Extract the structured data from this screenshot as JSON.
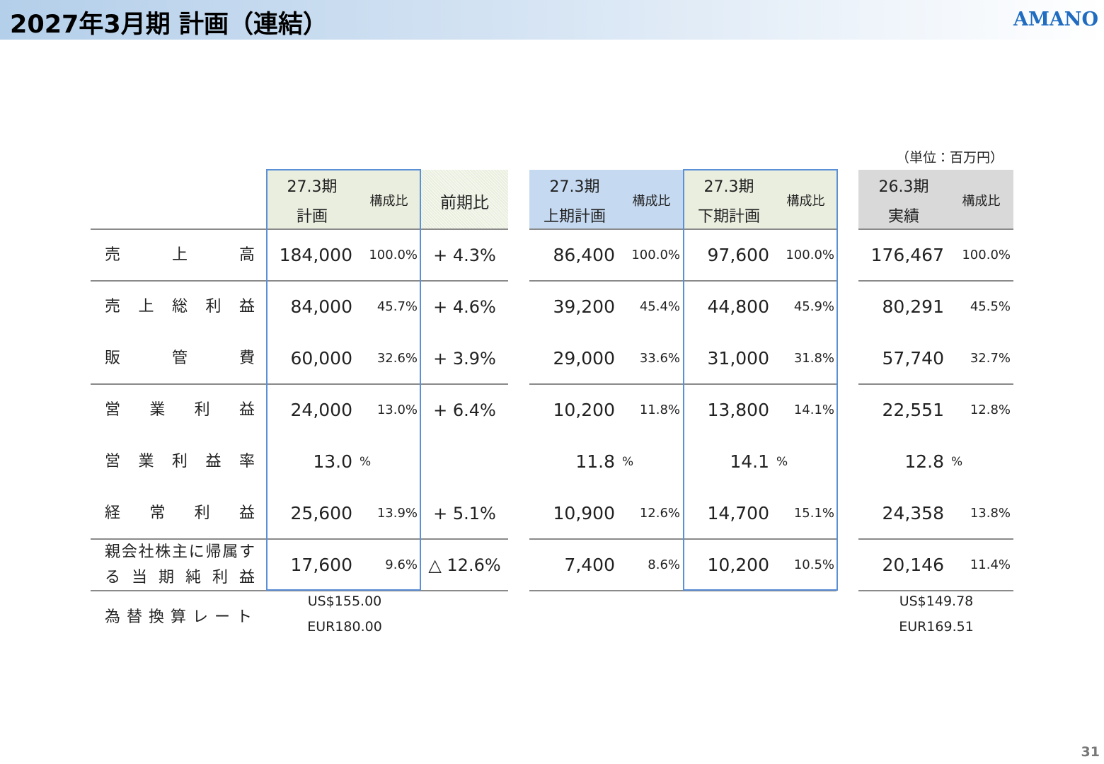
{
  "header": {
    "title": "2027年3月期 計画（連結）",
    "logo": "AMANO"
  },
  "unit_note": "（単位：百万円）",
  "table": {
    "headers": {
      "plan": {
        "period": "27.3期",
        "name": "計画",
        "ratio": "構成比"
      },
      "yoy": {
        "name": "前期比"
      },
      "h1": {
        "period": "27.3期",
        "name": "上期計画",
        "ratio": "構成比"
      },
      "h2": {
        "period": "27.3期",
        "name": "下期計画",
        "ratio": "構成比"
      },
      "prev": {
        "period": "26.3期",
        "name": "実績",
        "ratio": "構成比"
      }
    },
    "rows": [
      {
        "label": "売上高",
        "plan": {
          "value": "184,000",
          "ratio": "100.0%"
        },
        "yoy": "+ 4.3%",
        "h1": {
          "value": "86,400",
          "ratio": "100.0%"
        },
        "h2": {
          "value": "97,600",
          "ratio": "100.0%"
        },
        "prev": {
          "value": "176,467",
          "ratio": "100.0%"
        }
      },
      {
        "label": "売上総利益",
        "plan": {
          "value": "84,000",
          "ratio": "45.7%"
        },
        "yoy": "+ 4.6%",
        "h1": {
          "value": "39,200",
          "ratio": "45.4%"
        },
        "h2": {
          "value": "44,800",
          "ratio": "45.9%"
        },
        "prev": {
          "value": "80,291",
          "ratio": "45.5%"
        }
      },
      {
        "label": "販管費",
        "plan": {
          "value": "60,000",
          "ratio": "32.6%"
        },
        "yoy": "+ 3.9%",
        "h1": {
          "value": "29,000",
          "ratio": "33.6%"
        },
        "h2": {
          "value": "31,000",
          "ratio": "31.8%"
        },
        "prev": {
          "value": "57,740",
          "ratio": "32.7%"
        }
      },
      {
        "label": "営業利益",
        "plan": {
          "value": "24,000",
          "ratio": "13.0%"
        },
        "yoy": "+ 6.4%",
        "h1": {
          "value": "10,200",
          "ratio": "11.8%"
        },
        "h2": {
          "value": "13,800",
          "ratio": "14.1%"
        },
        "prev": {
          "value": "22,551",
          "ratio": "12.8%"
        }
      },
      {
        "label": "営業利益率",
        "plan": {
          "value": "13.0",
          "unit": "%"
        },
        "h1": {
          "value": "11.8",
          "unit": "%"
        },
        "h2": {
          "value": "14.1",
          "unit": "%"
        },
        "prev": {
          "value": "12.8",
          "unit": "%"
        }
      },
      {
        "label": "経常利益",
        "plan": {
          "value": "25,600",
          "ratio": "13.9%"
        },
        "yoy": "+ 5.1%",
        "h1": {
          "value": "10,900",
          "ratio": "12.6%"
        },
        "h2": {
          "value": "14,700",
          "ratio": "15.1%"
        },
        "prev": {
          "value": "24,358",
          "ratio": "13.8%"
        }
      },
      {
        "label": "親会社株主に帰属する当期純利益",
        "plan": {
          "value": "17,600",
          "ratio": "9.6%"
        },
        "yoy": "△ 12.6%",
        "h1": {
          "value": "7,400",
          "ratio": "8.6%"
        },
        "h2": {
          "value": "10,200",
          "ratio": "10.5%"
        },
        "prev": {
          "value": "20,146",
          "ratio": "11.4%"
        }
      }
    ],
    "fx_rate": {
      "label": "為替換算レート",
      "plan": [
        "US$155.00",
        "EUR180.00"
      ],
      "prev": [
        "US$149.78",
        "EUR169.51"
      ]
    }
  },
  "page_number": "31"
}
